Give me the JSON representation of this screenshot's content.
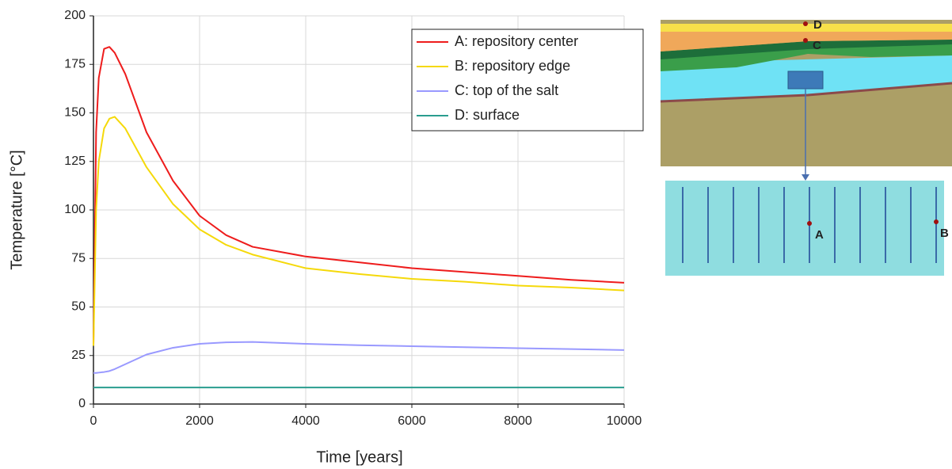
{
  "chart_data": {
    "type": "line",
    "x_label": "Time [years]",
    "y_label": "Temperature [°C]",
    "x": [
      0,
      50,
      100,
      200,
      300,
      400,
      600,
      800,
      1000,
      1500,
      2000,
      2500,
      3000,
      4000,
      5000,
      6000,
      7000,
      8000,
      9000,
      10000
    ],
    "series": [
      {
        "name": "A: repository center",
        "color": "#ee1c1c",
        "values": [
          30,
          140,
          168,
          183,
          184,
          181,
          170,
          155,
          140,
          115,
          97,
          87,
          81,
          76,
          73,
          70,
          68,
          66,
          64,
          62.5
        ]
      },
      {
        "name": "B: repository edge",
        "color": "#f5d90a",
        "values": [
          30,
          100,
          125,
          142,
          147,
          148,
          142,
          132,
          122,
          103,
          90,
          82,
          77,
          70,
          67,
          64.5,
          63,
          61,
          60,
          58.5
        ]
      },
      {
        "name": "C: top of the salt",
        "color": "#9999ff",
        "values": [
          16,
          16,
          16.2,
          16.5,
          17,
          18,
          20.5,
          23,
          25.5,
          29,
          31,
          31.8,
          32,
          31,
          30.3,
          29.8,
          29.3,
          28.8,
          28.3,
          27.8
        ]
      },
      {
        "name": "D: surface",
        "color": "#2a9d8f",
        "values": [
          8.5,
          8.5,
          8.5,
          8.5,
          8.5,
          8.5,
          8.5,
          8.5,
          8.5,
          8.5,
          8.5,
          8.5,
          8.5,
          8.5,
          8.5,
          8.5,
          8.5,
          8.5,
          8.5,
          8.5
        ]
      }
    ],
    "xlim": [
      0,
      10000
    ],
    "xticks": [
      0,
      2000,
      4000,
      6000,
      8000,
      10000
    ],
    "ylim": [
      0,
      200
    ],
    "yticks": [
      0,
      25,
      50,
      75,
      100,
      125,
      150,
      175,
      200
    ],
    "grid": true,
    "legend": "upper right",
    "annotations": [
      "D",
      "C",
      "A",
      "B"
    ]
  }
}
